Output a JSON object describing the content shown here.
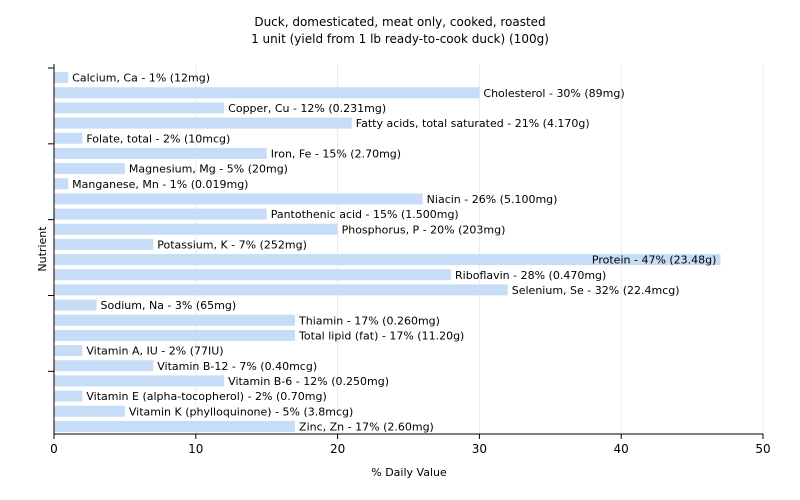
{
  "chart_data": {
    "type": "bar",
    "orientation": "horizontal",
    "title": "Duck, domesticated, meat only, cooked, roasted",
    "subtitle": "1 unit (yield from 1 lb ready-to-cook duck) (100g)",
    "xlabel": "% Daily Value",
    "ylabel": "Nutrient",
    "xlim": [
      0,
      50
    ],
    "xticks": [
      "0",
      "10",
      "20",
      "30",
      "40",
      "50"
    ],
    "grid": true,
    "colors": {
      "bar": "#c6dcf7",
      "bar_highlight": "#bcd6f6",
      "grid": "#ebebeb",
      "axis": "#000000"
    },
    "categories": [
      "Calcium, Ca",
      "Cholesterol",
      "Copper, Cu",
      "Fatty acids, total saturated",
      "Folate, total",
      "Iron, Fe",
      "Magnesium, Mg",
      "Manganese, Mn",
      "Niacin",
      "Pantothenic acid",
      "Phosphorus, P",
      "Potassium, K",
      "Protein",
      "Riboflavin",
      "Selenium, Se",
      "Sodium, Na",
      "Thiamin",
      "Total lipid (fat)",
      "Vitamin A, IU",
      "Vitamin B-12",
      "Vitamin B-6",
      "Vitamin E (alpha-tocopherol)",
      "Vitamin K (phylloquinone)",
      "Zinc, Zn"
    ],
    "values": [
      1,
      30,
      12,
      21,
      2,
      15,
      5,
      1,
      26,
      15,
      20,
      7,
      47,
      28,
      32,
      3,
      17,
      17,
      2,
      7,
      12,
      2,
      5,
      17
    ],
    "labels": [
      "Calcium, Ca - 1% (12mg)",
      "Cholesterol - 30% (89mg)",
      "Copper, Cu - 12% (0.231mg)",
      "Fatty acids, total saturated - 21% (4.170g)",
      "Folate, total - 2% (10mcg)",
      "Iron, Fe - 15% (2.70mg)",
      "Magnesium, Mg - 5% (20mg)",
      "Manganese, Mn - 1% (0.019mg)",
      "Niacin - 26% (5.100mg)",
      "Pantothenic acid - 15% (1.500mg)",
      "Phosphorus, P - 20% (203mg)",
      "Potassium, K - 7% (252mg)",
      "Protein - 47% (23.48g)",
      "Riboflavin - 28% (0.470mg)",
      "Selenium, Se - 32% (22.4mcg)",
      "Sodium, Na - 3% (65mg)",
      "Thiamin - 17% (0.260mg)",
      "Total lipid (fat) - 17% (11.20g)",
      "Vitamin A, IU - 2% (77IU)",
      "Vitamin B-12 - 7% (0.40mcg)",
      "Vitamin B-6 - 12% (0.250mg)",
      "Vitamin E (alpha-tocopherol) - 2% (0.70mg)",
      "Vitamin K (phylloquinone) - 5% (3.8mcg)",
      "Zinc, Zn - 17% (2.60mg)"
    ]
  }
}
